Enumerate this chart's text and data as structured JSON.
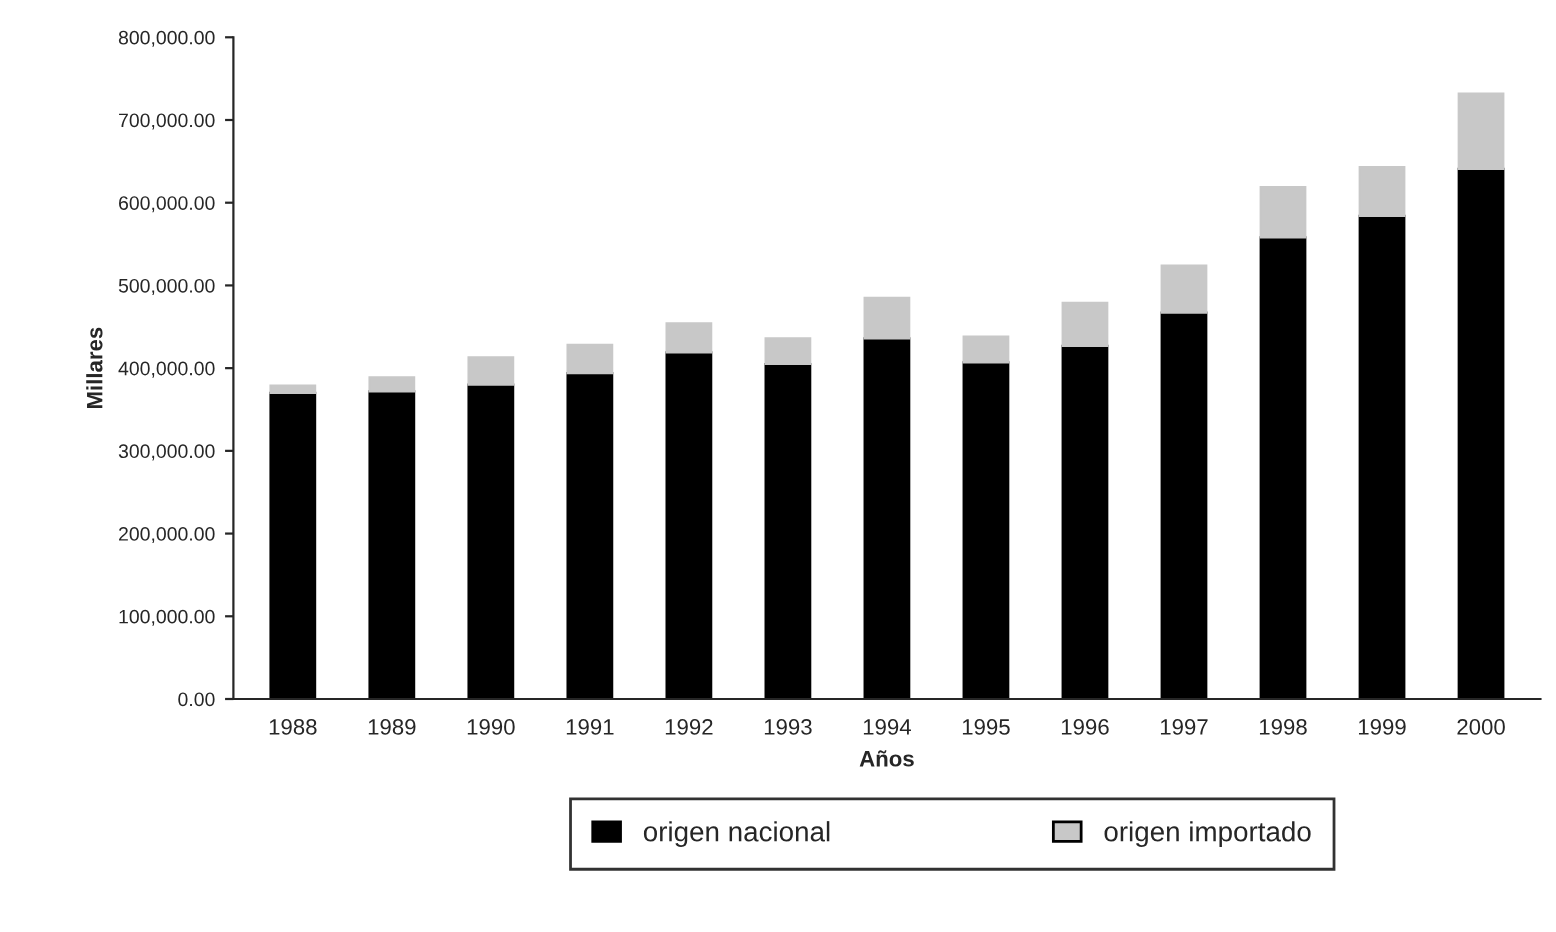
{
  "chart_data": {
    "type": "bar",
    "stacked": true,
    "xlabel": "Años",
    "ylabel": "Millares",
    "categories": [
      "1988",
      "1989",
      "1990",
      "1991",
      "1992",
      "1993",
      "1994",
      "1995",
      "1996",
      "1997",
      "1998",
      "1999",
      "2000"
    ],
    "series": [
      {
        "name": "origen nacional",
        "color": "#000000",
        "values": [
          370000,
          372000,
          380000,
          394000,
          419000,
          405000,
          436000,
          407000,
          427000,
          467000,
          558000,
          584000,
          641000
        ]
      },
      {
        "name": "origen importado",
        "color": "#c8c8c8",
        "values": [
          9000,
          17000,
          33000,
          34000,
          35000,
          31000,
          49000,
          31000,
          52000,
          57000,
          61000,
          59000,
          91000
        ]
      }
    ],
    "ylim": [
      0,
      800000
    ],
    "yticks": [
      {
        "value": 0,
        "label": "0.00"
      },
      {
        "value": 100000,
        "label": "100,000.00"
      },
      {
        "value": 200000,
        "label": "200,000.00"
      },
      {
        "value": 300000,
        "label": "300,000.00"
      },
      {
        "value": 400000,
        "label": "400,000.00"
      },
      {
        "value": 500000,
        "label": "500,000.00"
      },
      {
        "value": 600000,
        "label": "600,000.00"
      },
      {
        "value": 700000,
        "label": "700,000.00"
      },
      {
        "value": 800000,
        "label": "800,000.00"
      }
    ],
    "grid": false,
    "legend": "bottom"
  }
}
